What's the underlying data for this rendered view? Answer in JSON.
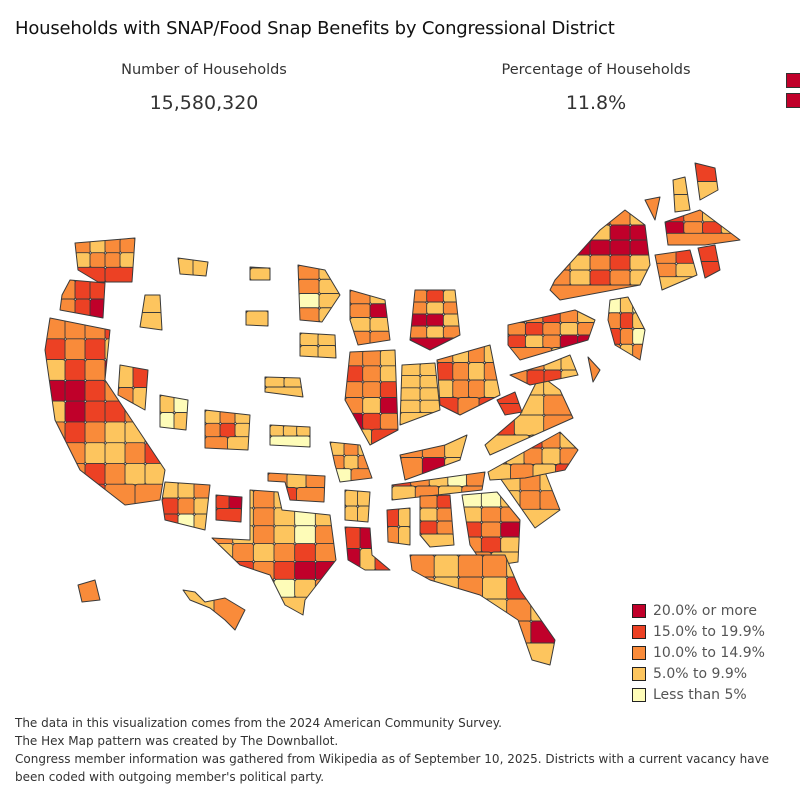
{
  "title": "Households with SNAP/Food Snap Benefits by Congressional District",
  "kpis": {
    "households_label": "Number of Households",
    "households_value": "15,580,320",
    "percentage_label": "Percentage of Households",
    "percentage_value": "11.8%"
  },
  "legend": {
    "items": [
      {
        "label": "20.0% or more",
        "color": "#c0002a",
        "class": "c4"
      },
      {
        "label": "15.0% to 19.9%",
        "color": "#ec4124",
        "class": "c3"
      },
      {
        "label": "10.0% to 14.9%",
        "color": "#f98b3a",
        "class": "c2"
      },
      {
        "label": "5.0% to 9.9%",
        "color": "#fdc55e",
        "class": "c1"
      },
      {
        "label": "Less than 5%",
        "color": "#fefcb8",
        "class": "c0"
      }
    ]
  },
  "footer": {
    "line1": "The data in this visualization comes from the 2024 American Community Survey.",
    "line2": "The Hex Map pattern was created by The Downballot.",
    "line3": "Congress member information was gathered from Wikipedia as of September 10, 2025. Districts with a current vacancy have been coded with outgoing member's political party."
  },
  "chart_data": {
    "type": "choropleth",
    "title": "Households with SNAP/Food Snap Benefits by Congressional District",
    "unit": "share of households receiving SNAP",
    "classes": [
      "Less than 5%",
      "5.0% to 9.9%",
      "10.0% to 14.9%",
      "15.0% to 19.9%",
      "20.0% or more"
    ],
    "legend_position": "bottom-right",
    "states": [
      {
        "state": "WA",
        "districts": [
          2,
          1,
          2,
          2,
          1,
          2,
          2,
          1,
          3,
          3
        ]
      },
      {
        "state": "OR",
        "districts": [
          2,
          3,
          3,
          2,
          3,
          4
        ]
      },
      {
        "state": "CA",
        "districts": [
          2,
          2,
          2,
          3,
          1,
          2,
          3,
          2,
          3,
          1,
          2,
          2,
          1,
          3,
          2,
          4,
          1,
          4,
          4,
          4,
          3,
          2,
          1,
          2,
          1,
          4,
          3,
          3,
          2,
          1,
          2,
          3,
          2,
          1,
          1,
          2,
          3,
          2,
          1,
          1,
          2,
          3,
          1,
          2,
          3,
          2,
          1,
          1,
          2,
          3,
          2,
          2
        ]
      },
      {
        "state": "ID",
        "districts": [
          1,
          1
        ]
      },
      {
        "state": "NV",
        "districts": [
          1,
          3,
          2,
          1
        ]
      },
      {
        "state": "UT",
        "districts": [
          1,
          0,
          0,
          1
        ]
      },
      {
        "state": "AZ",
        "districts": [
          1,
          1,
          2,
          3,
          2,
          1,
          3,
          0,
          1
        ]
      },
      {
        "state": "MT",
        "districts": [
          1,
          1
        ]
      },
      {
        "state": "WY",
        "districts": [
          1
        ]
      },
      {
        "state": "CO",
        "districts": [
          1,
          2,
          1,
          2,
          3,
          1,
          2,
          1
        ]
      },
      {
        "state": "NM",
        "districts": [
          3,
          4,
          3
        ]
      },
      {
        "state": "ND",
        "districts": [
          1
        ]
      },
      {
        "state": "SD",
        "districts": [
          1
        ]
      },
      {
        "state": "NE",
        "districts": [
          1,
          1,
          1
        ]
      },
      {
        "state": "KS",
        "districts": [
          1,
          1,
          1,
          0
        ]
      },
      {
        "state": "OK",
        "districts": [
          2,
          1,
          2,
          3,
          2
        ]
      },
      {
        "state": "TX",
        "districts": [
          3,
          1,
          2,
          1,
          0,
          2,
          1,
          1,
          2,
          1,
          0,
          1,
          2,
          1,
          2,
          1,
          0,
          2,
          1,
          2,
          1,
          2,
          3,
          2,
          1,
          3,
          2,
          3,
          4,
          4,
          3,
          2,
          1,
          0,
          1,
          2,
          3,
          1
        ]
      },
      {
        "state": "MN",
        "districts": [
          2,
          1,
          2,
          1,
          0,
          1,
          2,
          1
        ]
      },
      {
        "state": "IA",
        "districts": [
          1,
          1,
          1,
          1
        ]
      },
      {
        "state": "MO",
        "districts": [
          1,
          2,
          1,
          2,
          1,
          2,
          0,
          2
        ]
      },
      {
        "state": "AR",
        "districts": [
          1,
          1,
          1,
          1
        ]
      },
      {
        "state": "LA",
        "districts": [
          3,
          4,
          3,
          4,
          1,
          3
        ]
      },
      {
        "state": "WI",
        "districts": [
          2,
          1,
          2,
          4,
          1,
          1,
          2,
          2
        ]
      },
      {
        "state": "IL",
        "districts": [
          2,
          2,
          1,
          3,
          2,
          1,
          2,
          2,
          3,
          2,
          1,
          4,
          4,
          3,
          2,
          1,
          3
        ]
      },
      {
        "state": "MI",
        "districts": [
          2,
          3,
          1,
          2,
          1,
          2,
          4,
          4,
          1,
          2,
          1,
          2,
          4
        ]
      },
      {
        "state": "IN",
        "districts": [
          1,
          1,
          1,
          1,
          1,
          1,
          1,
          1,
          1
        ]
      },
      {
        "state": "OH",
        "districts": [
          2,
          1,
          2,
          1,
          3,
          2,
          1,
          2,
          1,
          2,
          2,
          1,
          3,
          2,
          3
        ]
      },
      {
        "state": "KY",
        "districts": [
          2,
          2,
          1,
          2,
          4,
          1
        ]
      },
      {
        "state": "TN",
        "districts": [
          3,
          2,
          1,
          0,
          2,
          1,
          2,
          1,
          2
        ]
      },
      {
        "state": "MS",
        "districts": [
          3,
          1,
          2,
          1
        ]
      },
      {
        "state": "AL",
        "districts": [
          2,
          3,
          1,
          2,
          3,
          2,
          1
        ]
      },
      {
        "state": "GA",
        "districts": [
          0,
          0,
          1,
          1,
          2,
          2,
          3,
          2,
          4,
          2,
          3,
          1,
          2,
          1
        ]
      },
      {
        "state": "FL",
        "districts": [
          2,
          1,
          2,
          2,
          1,
          2,
          2,
          1,
          2,
          1,
          3,
          2,
          1,
          2,
          3,
          1,
          2,
          1,
          2,
          3,
          2,
          1,
          2,
          4,
          4,
          3,
          2,
          1
        ]
      },
      {
        "state": "SC",
        "districts": [
          1,
          2,
          1,
          1,
          2,
          2,
          1
        ]
      },
      {
        "state": "NC",
        "districts": [
          3,
          2,
          3,
          2,
          1,
          2,
          1,
          2,
          1,
          2,
          1,
          2,
          1,
          3
        ]
      },
      {
        "state": "VA",
        "districts": [
          0,
          1,
          1,
          2,
          1,
          2,
          3,
          1,
          2,
          1,
          1
        ]
      },
      {
        "state": "WV",
        "districts": [
          3,
          3
        ]
      },
      {
        "state": "PA",
        "districts": [
          3,
          2,
          3,
          2,
          1,
          2,
          3,
          2,
          1,
          2,
          3,
          1,
          2,
          4,
          4,
          2,
          1
        ]
      },
      {
        "state": "NY",
        "districts": [
          3,
          2,
          3,
          2,
          1,
          3,
          2,
          1,
          4,
          4,
          4,
          4,
          4,
          4,
          4,
          2,
          1,
          2,
          3,
          1,
          2,
          1,
          3,
          2,
          1,
          2
        ]
      },
      {
        "state": "NJ",
        "districts": [
          0,
          1,
          0,
          2,
          3,
          1,
          3,
          2,
          0,
          2,
          1,
          2
        ]
      },
      {
        "state": "MD",
        "districts": [
          1,
          2,
          1,
          1,
          2,
          3,
          3,
          1
        ]
      },
      {
        "state": "DE",
        "districts": [
          2
        ]
      },
      {
        "state": "CT",
        "districts": [
          2,
          3,
          2,
          1,
          1
        ]
      },
      {
        "state": "RI",
        "districts": [
          3,
          3
        ]
      },
      {
        "state": "MA",
        "districts": [
          3,
          2,
          1,
          2,
          4,
          2,
          3,
          1,
          2
        ]
      },
      {
        "state": "VT",
        "districts": [
          2
        ]
      },
      {
        "state": "NH",
        "districts": [
          1,
          1
        ]
      },
      {
        "state": "ME",
        "districts": [
          3,
          1
        ]
      },
      {
        "state": "AK",
        "districts": [
          2
        ]
      },
      {
        "state": "HI",
        "districts": [
          1,
          2
        ]
      }
    ]
  }
}
